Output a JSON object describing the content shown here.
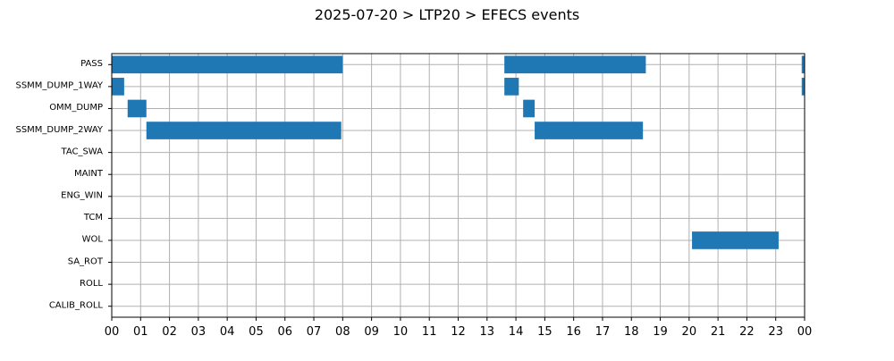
{
  "chart_data": {
    "type": "timeline",
    "title": "2025-07-20 > LTP20 > EFECS events",
    "xlabel": "",
    "ylabel": "",
    "x_unit": "hour",
    "xlim": [
      0,
      24
    ],
    "x_tick_labels": [
      "00",
      "01",
      "02",
      "03",
      "04",
      "05",
      "06",
      "07",
      "08",
      "09",
      "10",
      "11",
      "12",
      "13",
      "14",
      "15",
      "16",
      "17",
      "18",
      "19",
      "20",
      "21",
      "22",
      "23",
      "00"
    ],
    "categories": [
      "PASS",
      "SSMM_DUMP_1WAY",
      "OMM_DUMP",
      "SSMM_DUMP_2WAY",
      "TAC_SWA",
      "MAINT",
      "ENG_WIN",
      "TCM",
      "WOL",
      "SA_ROT",
      "ROLL",
      "CALIB_ROLL"
    ],
    "grid": true,
    "bar_color": "#1f77b4",
    "events": [
      {
        "category": "PASS",
        "start": 0.0,
        "end": 8.0
      },
      {
        "category": "PASS",
        "start": 13.6,
        "end": 18.5
      },
      {
        "category": "PASS",
        "start": 23.9,
        "end": 24.0
      },
      {
        "category": "SSMM_DUMP_1WAY",
        "start": 0.0,
        "end": 0.43
      },
      {
        "category": "SSMM_DUMP_1WAY",
        "start": 13.6,
        "end": 14.1
      },
      {
        "category": "SSMM_DUMP_1WAY",
        "start": 23.9,
        "end": 24.0
      },
      {
        "category": "OMM_DUMP",
        "start": 0.55,
        "end": 1.2
      },
      {
        "category": "OMM_DUMP",
        "start": 14.25,
        "end": 14.65
      },
      {
        "category": "SSMM_DUMP_2WAY",
        "start": 1.2,
        "end": 7.95
      },
      {
        "category": "SSMM_DUMP_2WAY",
        "start": 14.65,
        "end": 18.4
      },
      {
        "category": "WOL",
        "start": 20.1,
        "end": 23.1
      }
    ]
  }
}
